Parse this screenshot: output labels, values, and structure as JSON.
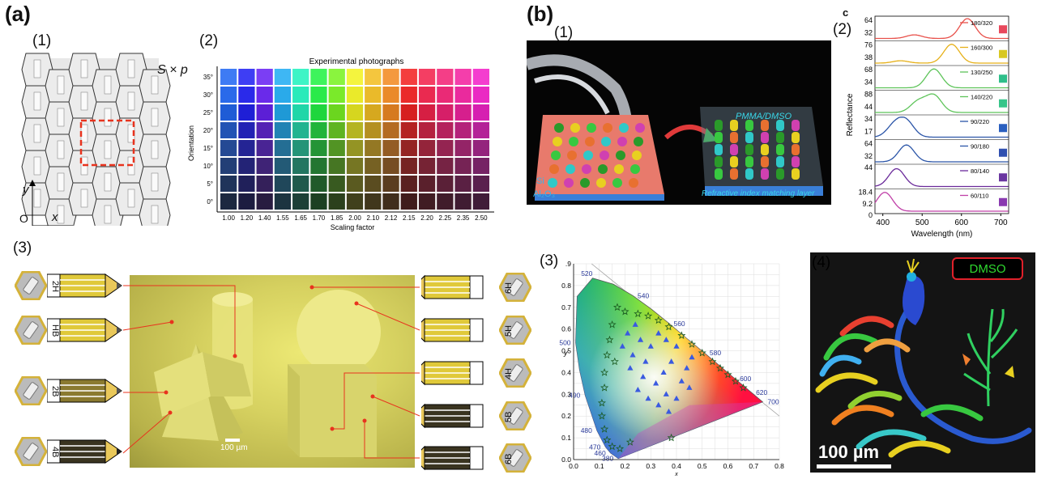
{
  "panel_labels": {
    "a": "(a)",
    "b": "(b)",
    "c": "c"
  },
  "sub_labels": {
    "a1": "(1)",
    "a2": "(2)",
    "a3": "(3)",
    "b1": "(1)",
    "b2": "(2)",
    "b3": "(3)",
    "b4": "(4)"
  },
  "a1": {
    "scale_label": "S × p",
    "axis_y": "y",
    "axis_x": "x",
    "origin": "O"
  },
  "a2": {
    "title": "Experimental photographs",
    "xlabel": "Scaling factor",
    "ylabel": "Orientation",
    "x_ticks": [
      "1.00",
      "1.20",
      "1.40",
      "1.55",
      "1.65",
      "1.70",
      "1.85",
      "2.00",
      "2.10",
      "2.12",
      "2.15",
      "2.20",
      "2.25",
      "2.35",
      "2.50"
    ],
    "y_ticks": [
      "35°",
      "30°",
      "25°",
      "20°",
      "15°",
      "10°",
      "5°",
      "0°"
    ]
  },
  "a3": {
    "left_pencils": [
      "2H",
      "HB",
      "2B",
      "4B"
    ],
    "right_pencils": [
      "6H",
      "5H",
      "4H",
      "5B",
      "6B"
    ],
    "scale_bar": "100 µm"
  },
  "b1": {
    "layer_si": "Si",
    "layer_al": "Al₂O₃",
    "pmma": "PMMA/DMSO",
    "matching": "Refractive index matching layer"
  },
  "chart_data": [
    {
      "type": "line",
      "panel": "b2",
      "xlabel": "Wavelength (nm)",
      "ylabel": "Reflectance",
      "xlim": [
        380,
        720
      ],
      "x_ticks": [
        400,
        500,
        600,
        700
      ],
      "series": [
        {
          "name": "180/320",
          "color": "#e8504a",
          "swatch": "#e8485c",
          "y_ticks": [
            "64",
            "32"
          ],
          "peaks": [
            [
              480,
              0.18
            ],
            [
              615,
              1.0
            ]
          ]
        },
        {
          "name": "160/300",
          "color": "#e6b018",
          "swatch": "#d8c822",
          "y_ticks": [
            "76",
            "38"
          ],
          "peaks": [
            [
              445,
              0.12
            ],
            [
              575,
              0.95
            ]
          ]
        },
        {
          "name": "130/250",
          "color": "#5ec45a",
          "swatch": "#2fbf8a",
          "y_ticks": [
            "68",
            "34"
          ],
          "peaks": [
            [
              530,
              0.95
            ]
          ]
        },
        {
          "name": "140/220",
          "color": "#5ec45a",
          "swatch": "#37c58a",
          "y_ticks": [
            "88",
            "44"
          ],
          "peaks": [
            [
              490,
              0.55
            ],
            [
              530,
              0.85
            ]
          ]
        },
        {
          "name": "90/220",
          "color": "#2b55a8",
          "swatch": "#2a5fbf",
          "y_ticks": [
            "34",
            "17"
          ],
          "peaks": [
            [
              430,
              0.6
            ],
            [
              460,
              0.75
            ]
          ]
        },
        {
          "name": "90/180",
          "color": "#2b55a8",
          "swatch": "#3050b0",
          "y_ticks": [
            "64",
            "32"
          ],
          "peaks": [
            [
              460,
              0.85
            ]
          ]
        },
        {
          "name": "80/140",
          "color": "#6a2a9a",
          "swatch": "#6a36a0",
          "y_ticks": [
            "44"
          ],
          "peaks": [
            [
              435,
              0.9
            ]
          ]
        },
        {
          "name": "60/110",
          "color": "#c040a8",
          "swatch": "#8a3ab0",
          "y_ticks": [
            "18.4",
            "9.2",
            "0"
          ],
          "peaks": [
            [
              405,
              0.95
            ]
          ]
        }
      ]
    },
    {
      "type": "scatter",
      "panel": "b3",
      "xlabel": "x",
      "ylabel": "y",
      "xlim": [
        0.0,
        0.8
      ],
      "ylim": [
        0.0,
        0.9
      ],
      "x_ticks": [
        "0.0",
        "0.1",
        "0.2",
        "0.3",
        "0.4",
        "0.5",
        "0.6",
        "0.7",
        "0.8"
      ],
      "y_ticks": [
        "0.0",
        "0.1",
        "0.2",
        "0.3",
        "0.4",
        "0.5",
        "0.6",
        "0.7",
        "0.8",
        ".9"
      ],
      "locus_labels": [
        {
          "text": "520",
          "x": 0.08,
          "y": 0.84
        },
        {
          "text": "540",
          "x": 0.23,
          "y": 0.754
        },
        {
          "text": "560",
          "x": 0.37,
          "y": 0.625
        },
        {
          "text": "580",
          "x": 0.51,
          "y": 0.49
        },
        {
          "text": "600",
          "x": 0.627,
          "y": 0.372
        },
        {
          "text": "620",
          "x": 0.69,
          "y": 0.308
        },
        {
          "text": "700",
          "x": 0.735,
          "y": 0.265
        },
        {
          "text": "500",
          "x": 0.008,
          "y": 0.538
        },
        {
          "text": "490",
          "x": 0.045,
          "y": 0.295
        },
        {
          "text": "480",
          "x": 0.091,
          "y": 0.133
        },
        {
          "text": "470",
          "x": 0.124,
          "y": 0.058
        },
        {
          "text": "460",
          "x": 0.144,
          "y": 0.03
        },
        {
          "text": "380",
          "x": 0.174,
          "y": 0.005
        }
      ],
      "series": [
        {
          "name": "stars",
          "marker": "star",
          "points": [
            [
              0.17,
              0.7
            ],
            [
              0.15,
              0.62
            ],
            [
              0.14,
              0.55
            ],
            [
              0.13,
              0.48
            ],
            [
              0.12,
              0.4
            ],
            [
              0.12,
              0.33
            ],
            [
              0.11,
              0.26
            ],
            [
              0.11,
              0.2
            ],
            [
              0.12,
              0.14
            ],
            [
              0.13,
              0.09
            ],
            [
              0.15,
              0.06
            ],
            [
              0.18,
              0.05
            ],
            [
              0.22,
              0.08
            ],
            [
              0.25,
              0.67
            ],
            [
              0.29,
              0.66
            ],
            [
              0.33,
              0.64
            ],
            [
              0.37,
              0.61
            ],
            [
              0.42,
              0.57
            ],
            [
              0.46,
              0.53
            ],
            [
              0.5,
              0.49
            ],
            [
              0.54,
              0.45
            ],
            [
              0.57,
              0.42
            ],
            [
              0.6,
              0.39
            ],
            [
              0.63,
              0.36
            ],
            [
              0.66,
              0.33
            ],
            [
              0.2,
              0.68
            ],
            [
              0.16,
              0.45
            ],
            [
              0.38,
              0.1
            ]
          ]
        },
        {
          "name": "triangles",
          "marker": "triangle",
          "points": [
            [
              0.24,
              0.62
            ],
            [
              0.26,
              0.55
            ],
            [
              0.23,
              0.48
            ],
            [
              0.22,
              0.42
            ],
            [
              0.28,
              0.45
            ],
            [
              0.3,
              0.52
            ],
            [
              0.27,
              0.38
            ],
            [
              0.25,
              0.32
            ],
            [
              0.33,
              0.58
            ],
            [
              0.36,
              0.55
            ],
            [
              0.4,
              0.52
            ],
            [
              0.38,
              0.45
            ],
            [
              0.35,
              0.4
            ],
            [
              0.32,
              0.35
            ],
            [
              0.36,
              0.3
            ],
            [
              0.4,
              0.28
            ],
            [
              0.42,
              0.36
            ],
            [
              0.44,
              0.42
            ],
            [
              0.46,
              0.47
            ],
            [
              0.29,
              0.28
            ],
            [
              0.33,
              0.25
            ],
            [
              0.37,
              0.22
            ],
            [
              0.21,
              0.58
            ],
            [
              0.19,
              0.52
            ],
            [
              0.45,
              0.33
            ]
          ]
        }
      ]
    }
  ],
  "b4": {
    "label": "DMSO",
    "scale_bar": "100 µm"
  },
  "colors": {
    "red_dash": "#e8331e",
    "dot_red": "#e8331e"
  }
}
